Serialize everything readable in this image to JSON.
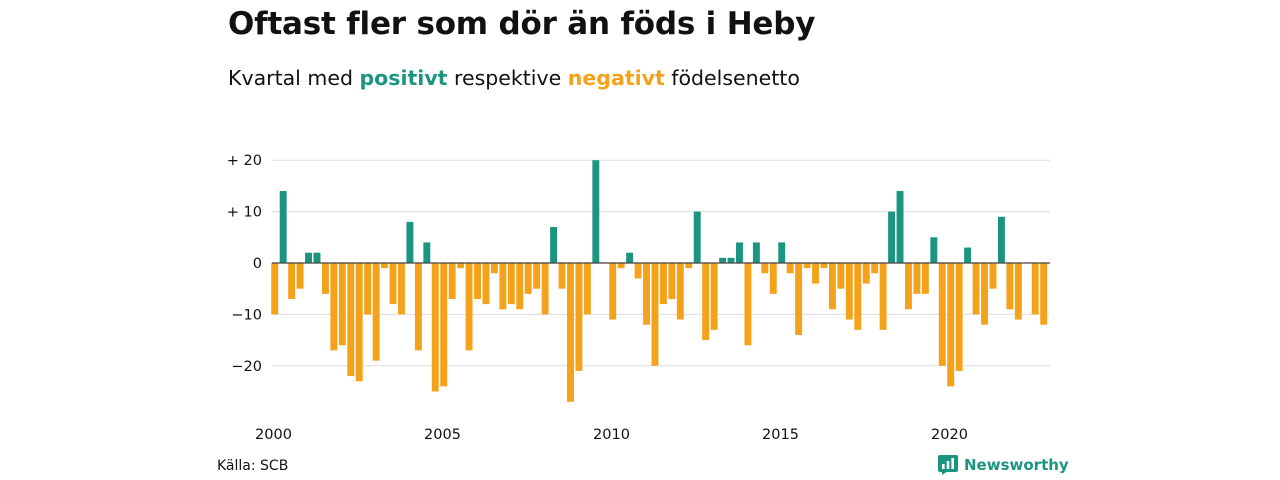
{
  "title": "Oftast fler som dör än föds i Heby",
  "subtitle": {
    "prefix": "Kvartal med ",
    "positive": "positivt",
    "middle": " respektive ",
    "negative": "negativt",
    "suffix": " födelsenetto"
  },
  "source": "Källa: SCB",
  "brand": {
    "name": "Newsworthy",
    "icon": "newsworthy-logo-icon"
  },
  "colors": {
    "positive": "#1b9580",
    "negative": "#f5a21b",
    "grid": "#dddddd",
    "zero": "#444444"
  },
  "chart_data": {
    "type": "bar",
    "x_start": 2000,
    "x_step": 0.25,
    "ylim": [
      -28,
      21
    ],
    "yticks": [
      20,
      10,
      0,
      -10,
      -20
    ],
    "ytick_labels": [
      "+ 20",
      "+ 10",
      "0",
      "−10",
      "−20"
    ],
    "xticks": [
      2000,
      2005,
      2010,
      2015,
      2020
    ],
    "xtick_labels": [
      "2000",
      "2005",
      "2010",
      "2015",
      "2020"
    ],
    "grid": true,
    "values": [
      -10,
      14,
      -7,
      -5,
      2,
      2,
      -6,
      -17,
      -16,
      -22,
      -23,
      -10,
      -19,
      -1,
      -8,
      -10,
      8,
      -17,
      4,
      -25,
      -24,
      -7,
      -1,
      -17,
      -7,
      -8,
      -2,
      -9,
      -8,
      -9,
      -6,
      -5,
      -10,
      7,
      -5,
      -27,
      -21,
      -10,
      20,
      0,
      -11,
      -1,
      2,
      -3,
      -12,
      -20,
      -8,
      -7,
      -11,
      -1,
      10,
      -15,
      -13,
      1,
      1,
      4,
      -16,
      4,
      -2,
      -6,
      4,
      -2,
      -14,
      -1,
      -4,
      -1,
      -9,
      -5,
      -11,
      -13,
      -4,
      -2,
      -13,
      10,
      14,
      -9,
      -6,
      -6,
      5,
      -20,
      -24,
      -21,
      3,
      -10,
      -12,
      -5,
      9,
      -9,
      -11,
      0,
      -10,
      -12
    ]
  }
}
